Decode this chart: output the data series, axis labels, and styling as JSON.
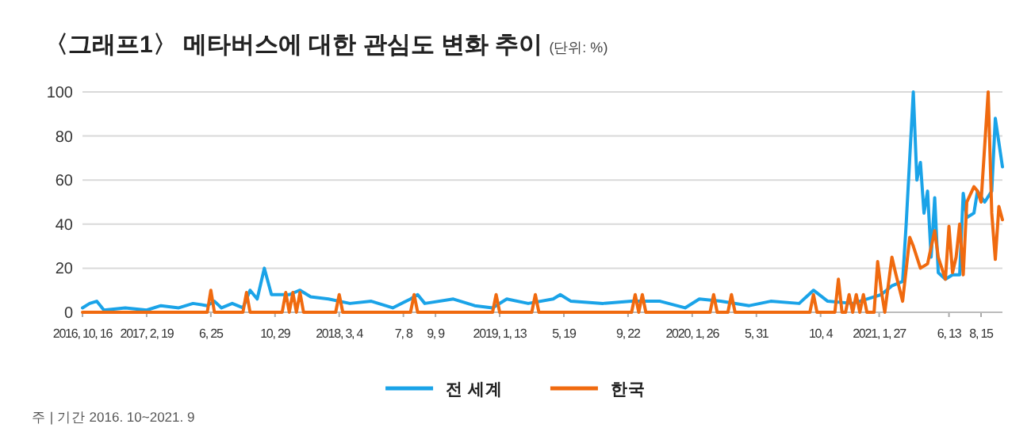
{
  "chart_data": {
    "type": "line",
    "title": "〈그래프1〉 메타버스에 대한 관심도 변화 추이",
    "subtitle": "(단위: %)",
    "annotations": [
      "주 | 기간 2016. 10~2021. 9"
    ],
    "xlim": [
      "2016-10-16",
      "2021-09-26"
    ],
    "ylim": [
      0,
      100
    ],
    "yticks": [
      0,
      20,
      40,
      60,
      80,
      100
    ],
    "grid": "y",
    "legend": "bottom",
    "xticks": [
      {
        "value": "2016-10-16",
        "label": "2016, 10, 16"
      },
      {
        "value": "2017-02-19",
        "label": "2017, 2, 19"
      },
      {
        "value": "2017-06-25",
        "label": "6, 25"
      },
      {
        "value": "2017-10-29",
        "label": "10, 29"
      },
      {
        "value": "2018-03-04",
        "label": "2018, 3, 4"
      },
      {
        "value": "2018-07-08",
        "label": "7, 8"
      },
      {
        "value": "2018-09-09",
        "label": "9, 9"
      },
      {
        "value": "2019-01-13",
        "label": "2019, 1, 13"
      },
      {
        "value": "2019-05-19",
        "label": "5, 19"
      },
      {
        "value": "2019-09-22",
        "label": "9, 22"
      },
      {
        "value": "2020-01-26",
        "label": "2020, 1, 26"
      },
      {
        "value": "2020-05-31",
        "label": "5, 31"
      },
      {
        "value": "2020-10-04",
        "label": "10, 4"
      },
      {
        "value": "2021-01-27",
        "label": "2021, 1, 27"
      },
      {
        "value": "2021-06-13",
        "label": "6, 13"
      },
      {
        "value": "2021-08-15",
        "label": "8, 15"
      }
    ],
    "series": [
      {
        "name": "전 세계",
        "color": "#1aa3e8",
        "x": [
          "2016-10-16",
          "2016-10-30",
          "2016-11-13",
          "2016-11-27",
          "2017-01-08",
          "2017-02-19",
          "2017-03-19",
          "2017-04-23",
          "2017-05-21",
          "2017-06-18",
          "2017-07-02",
          "2017-07-16",
          "2017-08-06",
          "2017-08-27",
          "2017-09-10",
          "2017-09-24",
          "2017-10-08",
          "2017-10-22",
          "2017-11-26",
          "2017-12-17",
          "2018-01-07",
          "2018-02-11",
          "2018-03-25",
          "2018-05-06",
          "2018-06-17",
          "2018-07-22",
          "2018-08-05",
          "2018-08-19",
          "2018-10-14",
          "2018-11-25",
          "2018-12-30",
          "2019-01-27",
          "2019-03-10",
          "2019-04-28",
          "2019-05-12",
          "2019-06-02",
          "2019-08-04",
          "2019-09-29",
          "2019-11-24",
          "2020-01-12",
          "2020-02-09",
          "2020-03-22",
          "2020-05-17",
          "2020-06-28",
          "2020-08-23",
          "2020-09-20",
          "2020-10-18",
          "2020-12-06",
          "2021-01-03",
          "2021-01-31",
          "2021-02-21",
          "2021-03-14",
          "2021-03-21",
          "2021-04-04",
          "2021-04-11",
          "2021-04-18",
          "2021-04-25",
          "2021-05-02",
          "2021-05-09",
          "2021-05-16",
          "2021-05-23",
          "2021-06-06",
          "2021-06-20",
          "2021-07-04",
          "2021-07-11",
          "2021-07-18",
          "2021-08-01",
          "2021-08-08",
          "2021-08-22",
          "2021-09-05",
          "2021-09-12",
          "2021-09-26"
        ],
        "values": [
          2,
          4,
          5,
          1,
          2,
          1,
          3,
          2,
          4,
          3,
          5,
          2,
          4,
          2,
          10,
          6,
          20,
          8,
          8,
          10,
          7,
          6,
          4,
          5,
          2,
          6,
          8,
          4,
          6,
          3,
          2,
          6,
          4,
          6,
          8,
          5,
          4,
          5,
          5,
          2,
          6,
          5,
          3,
          5,
          4,
          10,
          5,
          4,
          6,
          8,
          12,
          14,
          40,
          100,
          60,
          68,
          45,
          55,
          25,
          52,
          18,
          15,
          17,
          17,
          54,
          43,
          45,
          55,
          50,
          55,
          88,
          66
        ]
      },
      {
        "name": "한국",
        "color": "#f06a0f",
        "x": [
          "2016-10-16",
          "2017-06-18",
          "2017-06-25",
          "2017-07-02",
          "2017-08-27",
          "2017-09-03",
          "2017-09-10",
          "2017-11-12",
          "2017-11-19",
          "2017-11-26",
          "2017-12-03",
          "2017-12-10",
          "2017-12-17",
          "2017-12-24",
          "2018-02-25",
          "2018-03-04",
          "2018-03-11",
          "2018-07-22",
          "2018-07-29",
          "2018-08-05",
          "2018-12-30",
          "2019-01-06",
          "2019-01-13",
          "2019-03-17",
          "2019-03-24",
          "2019-03-31",
          "2019-09-29",
          "2019-10-06",
          "2019-10-13",
          "2019-10-20",
          "2019-10-27",
          "2019-11-03",
          "2020-03-01",
          "2020-03-08",
          "2020-03-15",
          "2020-04-05",
          "2020-04-12",
          "2020-04-19",
          "2020-09-13",
          "2020-09-20",
          "2020-09-27",
          "2020-11-01",
          "2020-11-08",
          "2020-11-15",
          "2020-11-22",
          "2020-11-29",
          "2020-12-06",
          "2020-12-13",
          "2020-12-20",
          "2020-12-27",
          "2021-01-03",
          "2021-01-17",
          "2021-01-24",
          "2021-01-31",
          "2021-02-07",
          "2021-02-21",
          "2021-02-28",
          "2021-03-14",
          "2021-03-28",
          "2021-04-04",
          "2021-04-18",
          "2021-05-02",
          "2021-05-16",
          "2021-05-23",
          "2021-06-06",
          "2021-06-13",
          "2021-06-20",
          "2021-06-27",
          "2021-07-04",
          "2021-07-11",
          "2021-07-18",
          "2021-08-01",
          "2021-08-08",
          "2021-08-15",
          "2021-08-29",
          "2021-09-05",
          "2021-09-12",
          "2021-09-19",
          "2021-09-26"
        ],
        "values": [
          0,
          0,
          10,
          0,
          0,
          9,
          0,
          0,
          9,
          0,
          9,
          0,
          9,
          0,
          0,
          8,
          0,
          0,
          8,
          0,
          0,
          8,
          0,
          0,
          8,
          0,
          0,
          8,
          0,
          8,
          0,
          0,
          0,
          8,
          0,
          0,
          8,
          0,
          0,
          8,
          0,
          0,
          15,
          0,
          0,
          8,
          0,
          8,
          0,
          8,
          0,
          0,
          23,
          10,
          0,
          25,
          18,
          5,
          34,
          30,
          20,
          22,
          37,
          25,
          15,
          39,
          18,
          25,
          40,
          17,
          50,
          57,
          55,
          50,
          100,
          45,
          24,
          48,
          42
        ]
      }
    ]
  }
}
